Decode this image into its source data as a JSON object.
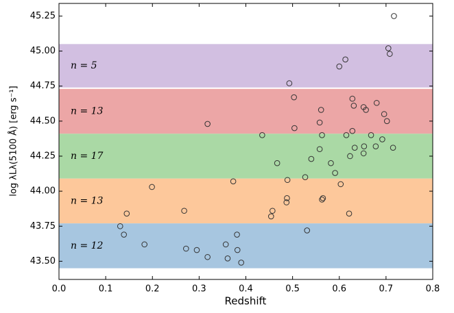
{
  "chart_data": {
    "type": "scatter",
    "x_label": "Redshift",
    "y_label": "log λLλ(5100 Å) [erg s⁻¹]",
    "xlim": [
      0,
      0.8
    ],
    "ylim": [
      43.37,
      45.34
    ],
    "xticks": [
      {
        "value": 0,
        "label": "0.0"
      },
      0.1,
      0.2,
      0.3,
      0.4,
      0.5,
      0.6,
      0.7,
      0.8
    ],
    "yticks": [
      {
        "value": 43.5,
        "label": "43.50"
      },
      43.75,
      {
        "value": 44,
        "label": "44.00"
      },
      44.25,
      {
        "value": 44.5,
        "label": "44.50"
      },
      44.75,
      {
        "value": 45,
        "label": "45.00"
      },
      45.25
    ],
    "bands": [
      {
        "label": "n = 5",
        "ymin": 44.74,
        "ymax": 45.05,
        "color": "#d2bfe1"
      },
      {
        "label": "n = 13",
        "ymin": 44.41,
        "ymax": 44.73,
        "color": "#eca6a6"
      },
      {
        "label": "n = 17",
        "ymin": 44.09,
        "ymax": 44.41,
        "color": "#aad9a5"
      },
      {
        "label": "n = 13",
        "ymin": 43.77,
        "ymax": 44.09,
        "color": "#fdc89b"
      },
      {
        "label": "n = 12",
        "ymin": 43.45,
        "ymax": 43.77,
        "color": "#a7c6e0"
      }
    ],
    "series": [
      {
        "color": "#333333",
        "x": [
          0.717,
          0.705,
          0.708,
          0.613,
          0.6,
          0.493,
          0.503,
          0.628,
          0.561,
          0.631,
          0.652,
          0.657,
          0.68,
          0.696,
          0.702,
          0.558,
          0.504,
          0.628,
          0.318,
          0.435,
          0.563,
          0.615,
          0.668,
          0.692,
          0.558,
          0.633,
          0.653,
          0.678,
          0.715,
          0.652,
          0.623,
          0.54,
          0.467,
          0.582,
          0.591,
          0.527,
          0.489,
          0.373,
          0.199,
          0.603,
          0.565,
          0.563,
          0.488,
          0.487,
          0.457,
          0.454,
          0.268,
          0.145,
          0.621,
          0.131,
          0.139,
          0.183,
          0.272,
          0.295,
          0.318,
          0.357,
          0.361,
          0.381,
          0.382,
          0.39,
          0.531
        ],
        "values": [
          45.25,
          45.02,
          44.98,
          44.94,
          44.89,
          44.77,
          44.67,
          44.66,
          44.58,
          44.61,
          44.6,
          44.58,
          44.63,
          44.55,
          44.5,
          44.49,
          44.45,
          44.43,
          44.48,
          44.4,
          44.4,
          44.4,
          44.4,
          44.37,
          44.3,
          44.31,
          44.32,
          44.32,
          44.31,
          44.27,
          44.25,
          44.23,
          44.2,
          44.2,
          44.13,
          44.1,
          44.08,
          44.07,
          44.03,
          44.05,
          43.95,
          43.94,
          43.95,
          43.92,
          43.86,
          43.82,
          43.86,
          43.84,
          43.84,
          43.75,
          43.69,
          43.62,
          43.59,
          43.58,
          43.53,
          43.62,
          43.52,
          43.69,
          43.58,
          43.49,
          43.72
        ]
      }
    ]
  }
}
